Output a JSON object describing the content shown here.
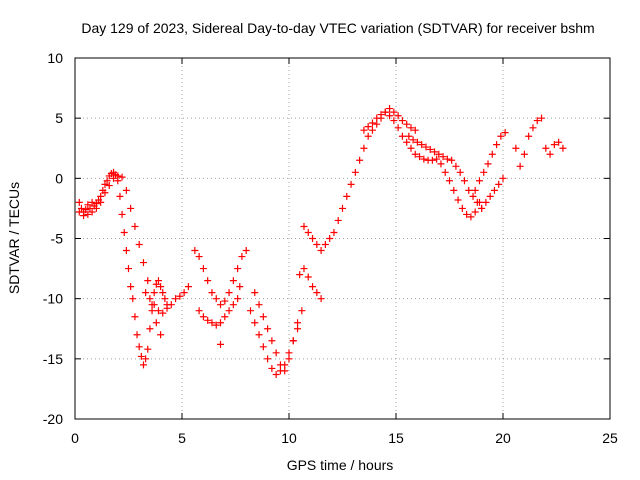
{
  "chart_data": {
    "type": "scatter",
    "title": "Day 129 of 2023, Sidereal Day-to-day VTEC variation (SDTVAR) for receiver bshm",
    "xlabel": "GPS time / hours",
    "ylabel": "SDTVAR / TECUs",
    "xlim": [
      0,
      25
    ],
    "ylim": [
      -20,
      10
    ],
    "xticks": [
      0,
      5,
      10,
      15,
      20,
      25
    ],
    "yticks": [
      -20,
      -15,
      -10,
      -5,
      0,
      5,
      10
    ],
    "xtick_labels": [
      "0",
      "5",
      "10",
      "15",
      "20",
      "25"
    ],
    "ytick_labels": [
      "-20",
      "-15",
      "-10",
      "-5",
      "0",
      "5",
      "10"
    ],
    "grid": true,
    "marker": "+",
    "series_color": "#ff0000",
    "series": [
      {
        "name": "bshm",
        "x": [
          0.2,
          0.3,
          0.4,
          0.5,
          0.6,
          0.7,
          0.8,
          0.9,
          1.0,
          1.1,
          1.2,
          1.3,
          1.4,
          1.5,
          1.6,
          1.7,
          1.8,
          1.9,
          2.0,
          2.1,
          2.2,
          2.3,
          2.4,
          2.5,
          2.6,
          2.7,
          2.8,
          2.9,
          3.0,
          3.1,
          3.2,
          3.3,
          3.4,
          3.5,
          3.6,
          3.7,
          3.8,
          3.9,
          4.0,
          4.1,
          4.2,
          4.3,
          0.2,
          0.4,
          0.6,
          0.8,
          1.0,
          1.2,
          1.4,
          1.6,
          1.8,
          2.0,
          2.2,
          2.4,
          2.6,
          2.8,
          3.0,
          3.2,
          3.4,
          3.6,
          3.8,
          4.0,
          3.3,
          3.5,
          3.7,
          3.9,
          4.1,
          4.3,
          4.5,
          4.7,
          4.9,
          5.1,
          5.3,
          5.6,
          5.8,
          6.0,
          6.2,
          6.4,
          6.6,
          6.8,
          7.0,
          7.2,
          7.4,
          7.6,
          7.8,
          8.0,
          5.8,
          6.0,
          6.2,
          6.4,
          6.6,
          6.8,
          7.0,
          7.2,
          7.4,
          7.6,
          6.8,
          7.7,
          8.2,
          8.4,
          8.6,
          8.8,
          9.0,
          9.2,
          9.4,
          9.6,
          9.8,
          10.0,
          10.2,
          10.4,
          8.4,
          8.6,
          8.8,
          9.0,
          9.2,
          9.4,
          9.6,
          9.8,
          10.0,
          10.2,
          10.4,
          10.6,
          10.5,
          10.7,
          10.9,
          11.1,
          11.3,
          11.5,
          10.7,
          10.9,
          11.1,
          11.3,
          11.5,
          11.7,
          11.9,
          12.1,
          12.3,
          12.5,
          12.7,
          12.9,
          13.1,
          13.3,
          13.5,
          13.7,
          13.9,
          14.1,
          14.3,
          14.5,
          14.7,
          14.9,
          15.1,
          15.3,
          15.5,
          15.7,
          15.9,
          13.5,
          13.7,
          13.9,
          14.1,
          14.3,
          14.5,
          14.7,
          14.9,
          15.1,
          15.3,
          15.5,
          15.7,
          15.9,
          16.1,
          16.3,
          16.5,
          16.7,
          16.9,
          17.1,
          17.3,
          17.5,
          17.7,
          17.9,
          18.1,
          18.3,
          18.5,
          18.7,
          18.9,
          15.6,
          15.8,
          16.0,
          16.2,
          16.4,
          16.6,
          16.8,
          17.0,
          17.2,
          17.4,
          17.6,
          17.8,
          18.0,
          18.2,
          18.4,
          18.6,
          18.8,
          19.0,
          18.7,
          18.9,
          19.1,
          19.3,
          19.5,
          19.7,
          19.9,
          20.1,
          19.0,
          19.2,
          19.4,
          19.6,
          19.8,
          20.0,
          20.6,
          20.8,
          21.0,
          21.2,
          21.4,
          21.6,
          21.8,
          22.0,
          22.2,
          22.4,
          22.6,
          22.8
        ],
        "y": [
          -2.0,
          -2.5,
          -2.8,
          -2.6,
          -2.2,
          -2.5,
          -2.0,
          -2.3,
          -2.1,
          -1.8,
          -1.5,
          -1.0,
          -0.5,
          -0.2,
          0.2,
          0.4,
          0.5,
          0.3,
          -0.2,
          -1.5,
          -3.0,
          -4.5,
          -6.0,
          -7.5,
          -9.0,
          -10.0,
          -11.5,
          -13.0,
          -14.0,
          -14.8,
          -15.5,
          -15.0,
          -14.2,
          -12.5,
          -11.0,
          -9.5,
          -8.8,
          -8.5,
          -9.0,
          -9.5,
          -10.0,
          -10.5,
          -2.8,
          -3.1,
          -3.0,
          -2.8,
          -2.5,
          -2.0,
          -1.2,
          -0.6,
          0.0,
          0.2,
          0.1,
          -1.0,
          -2.5,
          -4.0,
          -5.5,
          -7.0,
          -8.5,
          -10.5,
          -12.0,
          -13.0,
          -9.5,
          -10.0,
          -10.5,
          -11.0,
          -11.2,
          -10.8,
          -10.5,
          -10.0,
          -9.8,
          -9.5,
          -9.0,
          -6.0,
          -6.5,
          -7.5,
          -8.5,
          -9.5,
          -10.0,
          -10.5,
          -10.2,
          -9.5,
          -8.5,
          -7.5,
          -6.5,
          -6.0,
          -11.0,
          -11.5,
          -11.8,
          -12.0,
          -12.2,
          -12.0,
          -11.5,
          -11.0,
          -10.5,
          -10.0,
          -13.8,
          -9.0,
          -11.0,
          -12.0,
          -13.0,
          -14.0,
          -15.0,
          -15.8,
          -16.3,
          -16.0,
          -15.5,
          -14.5,
          -13.5,
          -12.5,
          -9.5,
          -10.5,
          -11.5,
          -12.5,
          -13.5,
          -14.5,
          -15.5,
          -16.0,
          -15.0,
          -13.5,
          -12.0,
          -11.0,
          -8.0,
          -7.5,
          -8.2,
          -9.0,
          -9.5,
          -10.0,
          -4.0,
          -4.5,
          -5.0,
          -5.5,
          -6.0,
          -5.5,
          -5.0,
          -4.5,
          -3.5,
          -2.5,
          -1.5,
          -0.5,
          0.5,
          1.5,
          2.5,
          3.5,
          4.0,
          4.5,
          5.0,
          5.5,
          5.8,
          5.5,
          5.2,
          4.8,
          4.5,
          4.2,
          4.0,
          4.0,
          4.3,
          4.6,
          5.0,
          5.3,
          5.5,
          5.2,
          4.8,
          4.2,
          3.5,
          3.0,
          2.5,
          2.0,
          1.8,
          1.6,
          1.5,
          1.5,
          1.6,
          1.2,
          0.5,
          -0.2,
          -1.0,
          -1.8,
          -2.5,
          -3.0,
          -3.2,
          -2.8,
          -2.0,
          3.5,
          3.2,
          3.0,
          2.8,
          2.6,
          2.4,
          2.2,
          2.0,
          1.8,
          1.6,
          1.5,
          1.0,
          0.5,
          -0.2,
          -1.0,
          -1.5,
          -2.0,
          -2.5,
          -1.0,
          -0.2,
          0.5,
          1.2,
          2.0,
          2.8,
          3.5,
          3.8,
          -2.5,
          -2.0,
          -1.5,
          -1.0,
          -0.5,
          0.0,
          2.5,
          1.0,
          2.0,
          3.5,
          4.2,
          4.8,
          5.0,
          2.5,
          2.0,
          2.8,
          3.0,
          2.5
        ]
      }
    ]
  }
}
